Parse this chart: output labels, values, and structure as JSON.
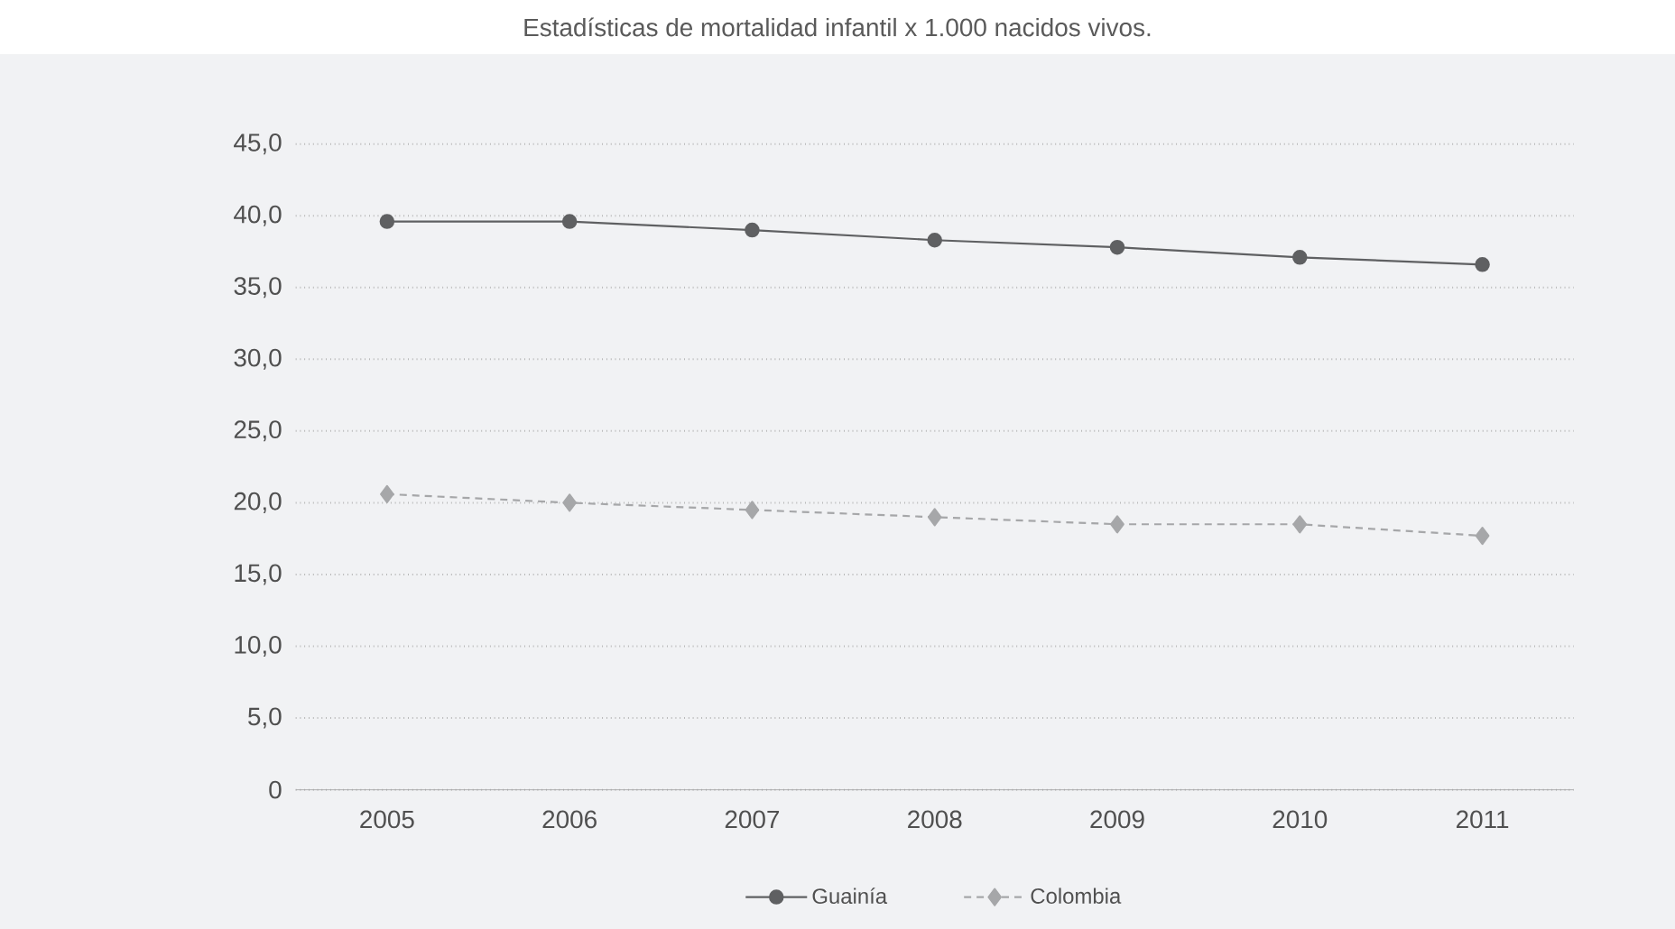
{
  "chart_data": {
    "type": "line",
    "title": "Estadísticas de mortalidad infantil x 1.000 nacidos vivos.",
    "categories": [
      "2005",
      "2006",
      "2007",
      "2008",
      "2009",
      "2010",
      "2011"
    ],
    "series": [
      {
        "name": "Guainía",
        "color": "#5f6062",
        "marker": "circle",
        "line_style": "solid",
        "values": [
          39.6,
          39.6,
          39.0,
          38.3,
          37.8,
          37.1,
          36.6
        ]
      },
      {
        "name": "Colombia",
        "color": "#a6a7a9",
        "marker": "diamond",
        "line_style": "dashed",
        "values": [
          20.6,
          20.0,
          19.5,
          19.0,
          18.5,
          18.5,
          17.7
        ]
      }
    ],
    "ylim": [
      0,
      45
    ],
    "yticks": [
      {
        "value": 0,
        "label": "0"
      },
      {
        "value": 5,
        "label": "5,0"
      },
      {
        "value": 10,
        "label": "10,0"
      },
      {
        "value": 15,
        "label": "15,0"
      },
      {
        "value": 20,
        "label": "20,0"
      },
      {
        "value": 25,
        "label": "25,0"
      },
      {
        "value": 30,
        "label": "30,0"
      },
      {
        "value": 35,
        "label": "35,0"
      },
      {
        "value": 40,
        "label": "40,0"
      },
      {
        "value": 45,
        "label": "45,0"
      }
    ],
    "grid": "y",
    "legend": "bottom"
  }
}
